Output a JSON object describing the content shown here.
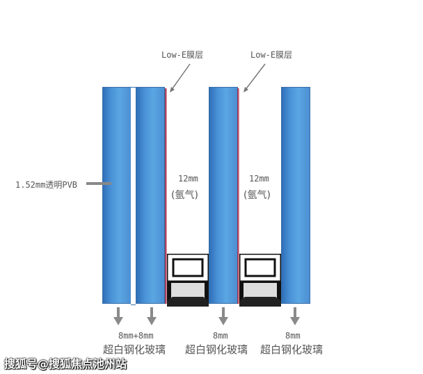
{
  "labels": {
    "lowe1": "Low-E膜层",
    "lowe2": "Low-E膜层",
    "pvb": "1.52mm透明PVB",
    "gap1_size": "12mm",
    "gap1_gas": "(氩气)",
    "gap2_size": "12mm",
    "gap2_gas": "(氩气)",
    "glass1_size": "8mm+8mm",
    "glass1_type": "超白钢化玻璃",
    "glass2_size": "8mm",
    "glass2_type": "超白钢化玻璃",
    "glass3_size": "8mm",
    "glass3_type": "超白钢化玻璃"
  },
  "watermark": "搜狐号@搜狐焦点池州站",
  "colors": {
    "glass": "#4a92d8",
    "lowe": "#c0304a",
    "arrow": "#8a8a8a"
  }
}
